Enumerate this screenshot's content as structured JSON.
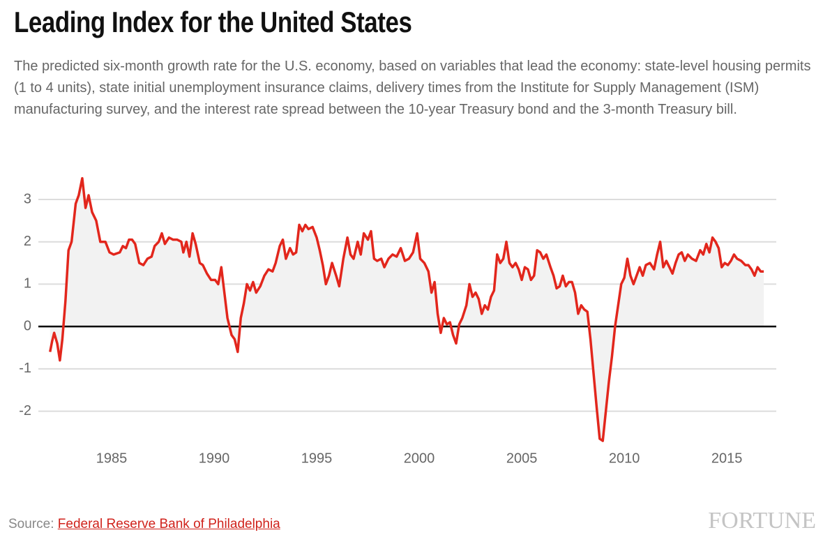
{
  "header": {
    "title": "Leading Index for the United States",
    "subtitle": "The predicted six-month growth rate for the U.S. economy, based on variables that lead the economy: state-level housing permits (1 to 4 units), state initial unemployment insurance claims, delivery times from the Institute for Supply Management (ISM) manufacturing survey, and the interest rate spread between the 10-year Treasury bond and the 3-month Treasury bill."
  },
  "footer": {
    "source_label": "Source:",
    "source_link": "Federal Reserve Bank of Philadelphia",
    "logo": "FORTUNE"
  },
  "chart_data": {
    "type": "area",
    "color": "#e2261c",
    "area_color": "#f2f2f2",
    "grid": true,
    "zero_line": true,
    "xlim": [
      1981.43,
      2017.41
    ],
    "xticks": [
      1985,
      1990,
      1995,
      2000,
      2005,
      2010,
      2015
    ],
    "ylim": [
      -2.83,
      3.51
    ],
    "yticks": [
      -2,
      -1,
      0,
      1,
      2,
      3
    ],
    "x": [
      1982.0,
      1982.1,
      1982.2,
      1982.35,
      1982.48,
      1982.6,
      1982.75,
      1982.9,
      1983.05,
      1983.25,
      1983.4,
      1983.57,
      1983.73,
      1983.88,
      1984.05,
      1984.25,
      1984.45,
      1984.7,
      1984.9,
      1985.1,
      1985.4,
      1985.55,
      1985.7,
      1985.85,
      1986.0,
      1986.15,
      1986.35,
      1986.55,
      1986.75,
      1986.95,
      1987.1,
      1987.3,
      1987.45,
      1987.6,
      1987.8,
      1988.0,
      1988.2,
      1988.4,
      1988.5,
      1988.65,
      1988.8,
      1988.95,
      1989.1,
      1989.3,
      1989.45,
      1989.65,
      1989.85,
      1990.05,
      1990.2,
      1990.35,
      1990.5,
      1990.65,
      1990.85,
      1991.0,
      1991.15,
      1991.3,
      1991.45,
      1991.6,
      1991.75,
      1991.9,
      1992.05,
      1992.25,
      1992.45,
      1992.65,
      1992.85,
      1993.0,
      1993.2,
      1993.35,
      1993.5,
      1993.7,
      1993.85,
      1994.0,
      1994.15,
      1994.3,
      1994.45,
      1994.6,
      1994.8,
      1995.0,
      1995.15,
      1995.3,
      1995.45,
      1995.6,
      1995.75,
      1995.95,
      1996.1,
      1996.3,
      1996.5,
      1996.65,
      1996.8,
      1997.0,
      1997.15,
      1997.3,
      1997.5,
      1997.65,
      1997.8,
      1997.95,
      1998.15,
      1998.3,
      1998.5,
      1998.7,
      1998.9,
      1999.1,
      1999.3,
      1999.5,
      1999.7,
      1999.9,
      2000.05,
      2000.25,
      2000.45,
      2000.6,
      2000.75,
      2000.9,
      2001.05,
      2001.2,
      2001.35,
      2001.5,
      2001.65,
      2001.8,
      2001.95,
      2002.1,
      2002.3,
      2002.45,
      2002.6,
      2002.75,
      2002.9,
      2003.05,
      2003.2,
      2003.35,
      2003.5,
      2003.65,
      2003.8,
      2003.95,
      2004.1,
      2004.25,
      2004.4,
      2004.55,
      2004.7,
      2004.85,
      2005.0,
      2005.15,
      2005.3,
      2005.45,
      2005.6,
      2005.75,
      2005.9,
      2006.05,
      2006.2,
      2006.4,
      2006.55,
      2006.7,
      2006.85,
      2007.0,
      2007.15,
      2007.3,
      2007.45,
      2007.6,
      2007.75,
      2007.9,
      2008.05,
      2008.2,
      2008.35,
      2008.5,
      2008.65,
      2008.8,
      2008.95,
      2009.1,
      2009.25,
      2009.4,
      2009.55,
      2009.7,
      2009.85,
      2010.0,
      2010.15,
      2010.3,
      2010.45,
      2010.6,
      2010.75,
      2010.9,
      2011.05,
      2011.25,
      2011.45,
      2011.6,
      2011.75,
      2011.9,
      2012.05,
      2012.2,
      2012.35,
      2012.5,
      2012.65,
      2012.8,
      2012.95,
      2013.1,
      2013.3,
      2013.5,
      2013.7,
      2013.85,
      2014.0,
      2014.15,
      2014.3,
      2014.45,
      2014.6,
      2014.75,
      2014.9,
      2015.05,
      2015.2,
      2015.35,
      2015.5,
      2015.7,
      2015.9,
      2016.05,
      2016.2,
      2016.35,
      2016.5,
      2016.65,
      2016.8
    ],
    "values": [
      -0.6,
      -0.35,
      -0.15,
      -0.4,
      -0.8,
      -0.3,
      0.6,
      1.8,
      2.0,
      2.9,
      3.1,
      3.5,
      2.8,
      3.1,
      2.7,
      2.5,
      2.0,
      2.0,
      1.75,
      1.7,
      1.75,
      1.9,
      1.85,
      2.05,
      2.05,
      1.95,
      1.5,
      1.45,
      1.6,
      1.65,
      1.9,
      2.0,
      2.2,
      1.95,
      2.1,
      2.05,
      2.05,
      2.0,
      1.75,
      2.0,
      1.65,
      2.2,
      1.95,
      1.5,
      1.45,
      1.25,
      1.1,
      1.1,
      1.0,
      1.4,
      0.8,
      0.2,
      -0.2,
      -0.3,
      -0.6,
      0.2,
      0.55,
      1.0,
      0.85,
      1.05,
      0.8,
      0.95,
      1.2,
      1.35,
      1.3,
      1.5,
      1.9,
      2.05,
      1.6,
      1.85,
      1.7,
      1.75,
      2.4,
      2.25,
      2.4,
      2.3,
      2.35,
      2.1,
      1.8,
      1.45,
      1.0,
      1.2,
      1.5,
      1.2,
      0.95,
      1.6,
      2.1,
      1.7,
      1.6,
      2.0,
      1.7,
      2.2,
      2.05,
      2.25,
      1.6,
      1.55,
      1.6,
      1.4,
      1.6,
      1.7,
      1.65,
      1.85,
      1.55,
      1.6,
      1.75,
      2.2,
      1.6,
      1.5,
      1.3,
      0.8,
      1.05,
      0.3,
      -0.15,
      0.2,
      0.05,
      0.1,
      -0.2,
      -0.4,
      0.05,
      0.2,
      0.5,
      1.0,
      0.7,
      0.8,
      0.65,
      0.3,
      0.5,
      0.4,
      0.7,
      0.85,
      1.7,
      1.5,
      1.6,
      2.0,
      1.5,
      1.4,
      1.5,
      1.35,
      1.1,
      1.4,
      1.35,
      1.1,
      1.2,
      1.8,
      1.75,
      1.6,
      1.7,
      1.4,
      1.2,
      0.9,
      0.95,
      1.2,
      0.95,
      1.05,
      1.05,
      0.8,
      0.3,
      0.5,
      0.4,
      0.35,
      -0.3,
      -1.1,
      -1.9,
      -2.65,
      -2.7,
      -2.0,
      -1.3,
      -0.7,
      0.0,
      0.5,
      1.0,
      1.15,
      1.6,
      1.2,
      1.0,
      1.2,
      1.4,
      1.2,
      1.45,
      1.5,
      1.35,
      1.7,
      2.0,
      1.4,
      1.55,
      1.4,
      1.25,
      1.5,
      1.7,
      1.75,
      1.55,
      1.7,
      1.6,
      1.55,
      1.8,
      1.7,
      1.95,
      1.75,
      2.1,
      2.0,
      1.85,
      1.4,
      1.5,
      1.45,
      1.55,
      1.7,
      1.6,
      1.55,
      1.45,
      1.45,
      1.35,
      1.2,
      1.4,
      1.3,
      1.3
    ]
  }
}
